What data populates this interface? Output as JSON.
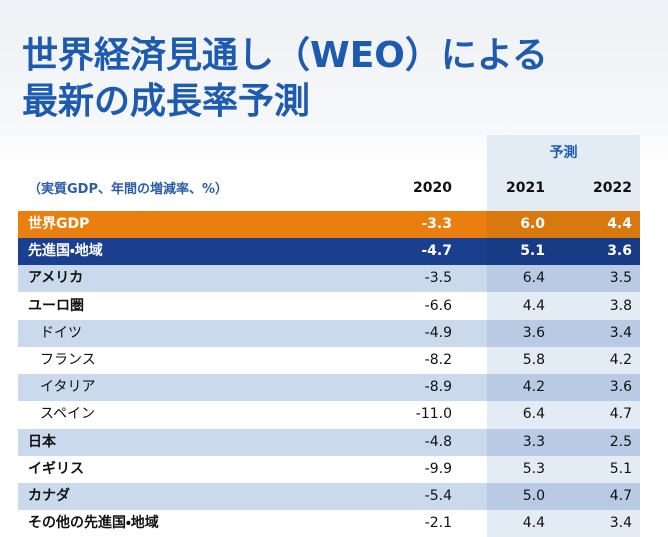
{
  "header": {
    "title_lines": [
      "世界経済見通し（WEO）による",
      "最新の成長率予測"
    ]
  },
  "table": {
    "forecast_label": "予測",
    "unit_label": "（実質GDP、年間の増減率、%）",
    "columns": [
      "2020",
      "2021",
      "2022"
    ],
    "rows": [
      [
        "世界GDP",
        "-3.3",
        "6.0",
        "4.4"
      ],
      [
        "先進国・地域",
        "-4.7",
        "5.1",
        "3.6"
      ],
      [
        "アメリカ",
        "-3.5",
        "6.4",
        "3.5"
      ],
      [
        "ユーロ圏",
        "-6.6",
        "4.4",
        "3.8"
      ],
      [
        "ドイツ",
        "-4.9",
        "3.6",
        "3.4"
      ],
      [
        "フランス",
        "-8.2",
        "5.8",
        "4.2"
      ],
      [
        "イタリア",
        "-8.9",
        "4.2",
        "3.6"
      ],
      [
        "スペイン",
        "-11.0",
        "6.4",
        "4.7"
      ],
      [
        "日本",
        "-4.8",
        "3.3",
        "2.5"
      ],
      [
        "イギリス",
        "-9.9",
        "5.3",
        "5.1"
      ],
      [
        "カナダ",
        "-5.4",
        "5.0",
        "4.7"
      ],
      [
        "その他の先進国・地域",
        "-2.1",
        "4.4",
        "3.4"
      ]
    ]
  }
}
